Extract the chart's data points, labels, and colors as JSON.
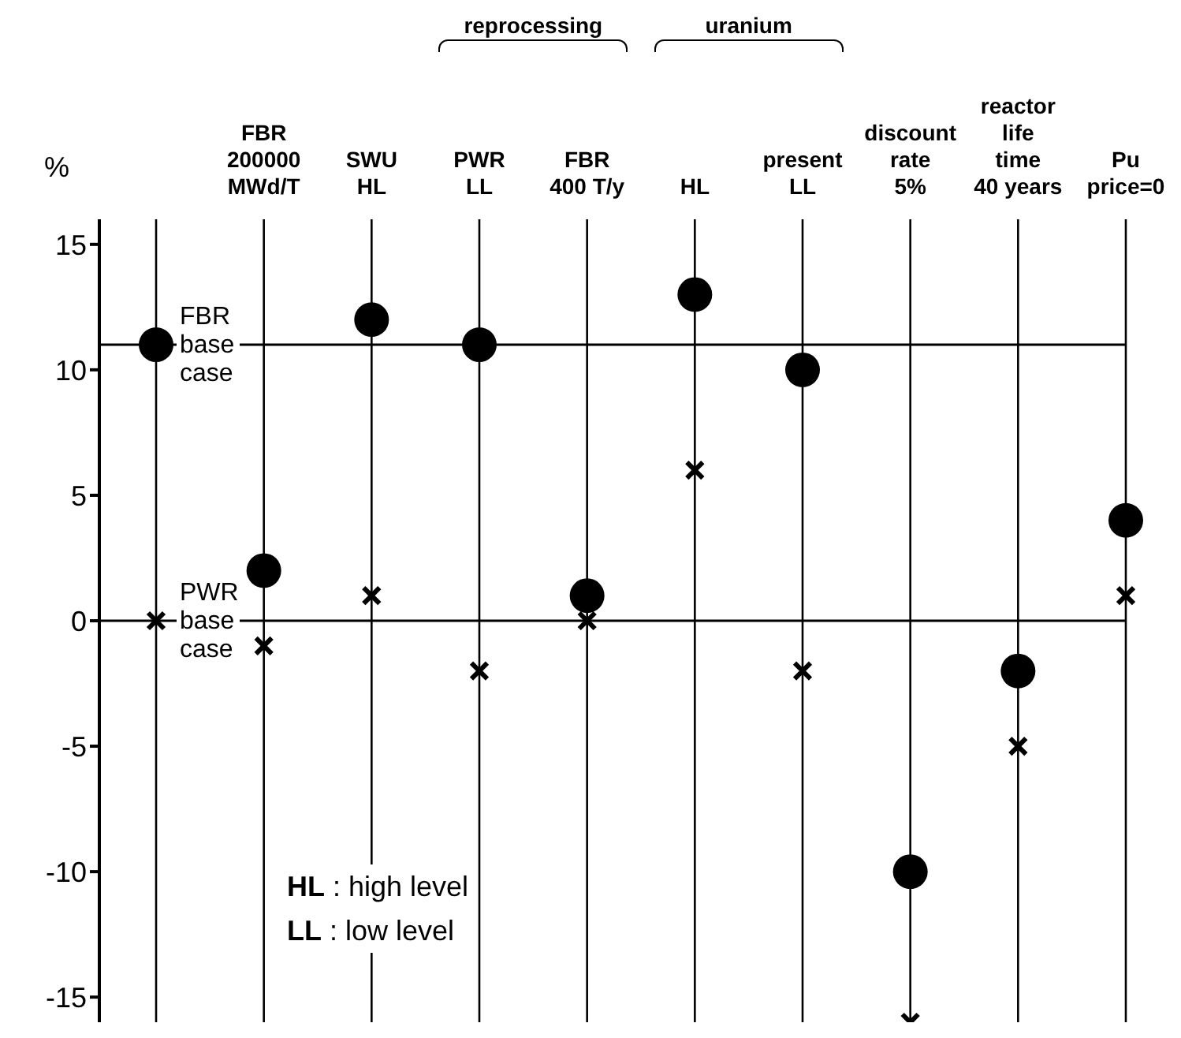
{
  "chart_data": {
    "type": "scatter",
    "ylabel": "%",
    "categories": [
      null,
      "FBR\n200000\nMWd/T",
      "SWU\nHL",
      "PWR\nLL",
      "FBR\n400 T/y",
      "HL",
      "present\nLL",
      "discount\nrate\n5%",
      "reactor\nlife\ntime\n40 years",
      "Pu\nprice=0"
    ],
    "series": [
      {
        "color": "#000000",
        "marker": "circle",
        "values": [
          11,
          2,
          12,
          11,
          1,
          13,
          10,
          -10,
          -2,
          4
        ]
      },
      {
        "color": "#000000",
        "marker": "cross",
        "values": [
          0,
          -1,
          1,
          -2,
          0,
          6,
          -2,
          -16,
          -5,
          1
        ]
      }
    ],
    "ylim": [
      -16,
      16
    ],
    "yticks": [
      -15,
      -10,
      -5,
      0,
      5,
      10,
      15
    ],
    "grid": "x",
    "ref_lines": [
      {
        "axis": "y",
        "value": 11,
        "label": "FBR\nbase\ncase",
        "color": "#000000"
      },
      {
        "axis": "y",
        "value": 0,
        "label": "PWR\nbase\ncase",
        "color": "#000000"
      }
    ],
    "annotations": [
      "reprocessing",
      "uranium",
      "HL : high level",
      "LL : low level"
    ]
  }
}
